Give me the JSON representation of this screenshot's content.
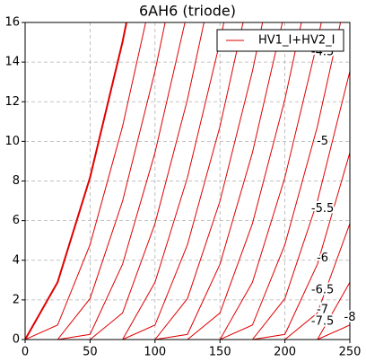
{
  "chart_data": {
    "type": "line",
    "title": "6AH6 (triode)",
    "x": [
      0,
      25,
      50,
      75,
      100,
      125,
      150,
      175,
      200,
      225,
      250
    ],
    "color": "#e00000",
    "series": [
      {
        "name": "HV1_I+HV2_I",
        "values": [
          0,
          2.89,
          8.18,
          15.02,
          23.13,
          null,
          null,
          null,
          null,
          null,
          null
        ]
      },
      {
        "values": [
          0,
          0.73,
          4.79,
          10.75,
          18.12,
          null,
          null,
          null,
          null,
          null,
          null
        ]
      },
      {
        "values": [
          0,
          0,
          2.07,
          6.98,
          13.54,
          21.42,
          null,
          null,
          null,
          null,
          null
        ]
      },
      {
        "values": [
          0,
          0,
          0.26,
          3.8,
          9.43,
          16.55,
          null,
          null,
          null,
          null,
          null
        ]
      },
      {
        "values": [
          0,
          0,
          0,
          1.34,
          5.85,
          12.12,
          19.75,
          null,
          null,
          null,
          null
        ]
      },
      {
        "values": [
          0,
          0,
          0,
          0,
          2.89,
          8.18,
          15.02,
          23.13,
          null,
          null,
          null
        ]
      },
      {
        "values": [
          0,
          0,
          0,
          0,
          0.73,
          4.79,
          10.75,
          18.12,
          null,
          null,
          null
        ]
      },
      {
        "values": [
          0,
          0,
          0,
          0,
          0,
          2.07,
          6.98,
          13.54,
          21.42,
          null,
          null
        ]
      },
      {
        "values": [
          0,
          0,
          0,
          0,
          0,
          0.26,
          3.8,
          9.43,
          16.55,
          null,
          null
        ]
      },
      {
        "values": [
          0,
          0,
          0,
          0,
          0,
          0,
          1.34,
          5.85,
          12.12,
          19.75,
          null
        ]
      },
      {
        "values": [
          0,
          0,
          0,
          0,
          0,
          0,
          0,
          2.89,
          8.18,
          15.02,
          23.13
        ]
      },
      {
        "values": [
          0,
          0,
          0,
          0,
          0,
          0,
          0,
          0.73,
          4.79,
          10.75,
          18.12
        ]
      },
      {
        "values": [
          0,
          0,
          0,
          0,
          0,
          0,
          0,
          0,
          2.07,
          6.98,
          13.54
        ]
      },
      {
        "values": [
          0,
          0,
          0,
          0,
          0,
          0,
          0,
          0,
          0.26,
          3.8,
          9.43
        ]
      },
      {
        "values": [
          0,
          0,
          0,
          0,
          0,
          0,
          0,
          0,
          0,
          1.34,
          5.85
        ]
      },
      {
        "values": [
          0,
          0,
          0,
          0,
          0,
          0,
          0,
          0,
          0,
          0,
          2.89
        ]
      },
      {
        "values": [
          0,
          0,
          0,
          0,
          0,
          0,
          0,
          0,
          0,
          0,
          0.73
        ]
      }
    ],
    "annotations": [
      {
        "text": "-4.5",
        "x": 229,
        "y": 14.5
      },
      {
        "text": "-5",
        "x": 229,
        "y": 10
      },
      {
        "text": "-5.5",
        "x": 229,
        "y": 6.6
      },
      {
        "text": "-6",
        "x": 229,
        "y": 4.1
      },
      {
        "text": "-6.5",
        "x": 229,
        "y": 2.5
      },
      {
        "text": "-7",
        "x": 229,
        "y": 1.5
      },
      {
        "text": "-7.5",
        "x": 229,
        "y": 0.9
      },
      {
        "text": "-8",
        "x": 250,
        "y": 1.1
      }
    ],
    "xlim": [
      0,
      250
    ],
    "xticks": [
      0,
      50,
      100,
      150,
      200,
      250
    ],
    "ylim": [
      0,
      16
    ],
    "yticks": [
      0,
      2,
      4,
      6,
      8,
      10,
      12,
      14,
      16
    ],
    "grid": true,
    "legend": "upper right"
  }
}
